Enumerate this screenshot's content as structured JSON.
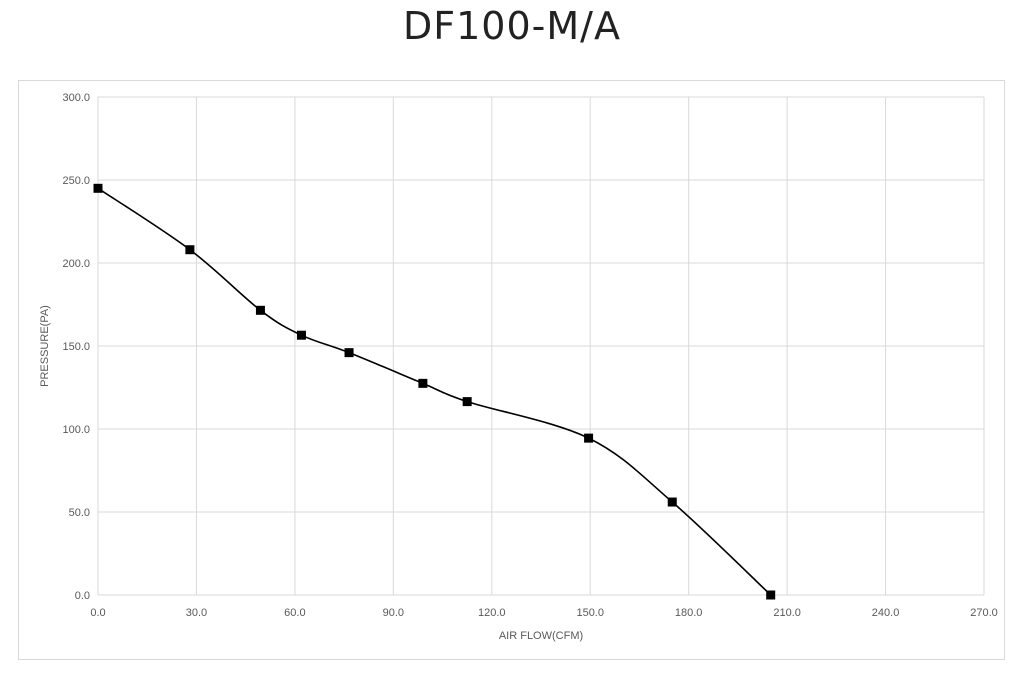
{
  "title": "DF100-M/A",
  "chart_data": {
    "type": "line",
    "title": "DF100-M/A",
    "xlabel": "AIR FLOW(CFM)",
    "ylabel": "PRESSURE(PA)",
    "xlim": [
      0,
      270
    ],
    "ylim": [
      0,
      300
    ],
    "x_ticks": [
      "0.0",
      "30.0",
      "60.0",
      "90.0",
      "120.0",
      "150.0",
      "180.0",
      "210.0",
      "240.0",
      "270.0"
    ],
    "y_ticks": [
      "0.0",
      "50.0",
      "100.0",
      "150.0",
      "200.0",
      "250.0",
      "300.0"
    ],
    "grid": true,
    "marker": "square",
    "smooth": true,
    "line_color": "#000000",
    "grid_color": "#d9d9d9",
    "series": [
      {
        "x": [
          0,
          28,
          49.5,
          62,
          76.5,
          99,
          112.5,
          149.5,
          175,
          205
        ],
        "y": [
          245,
          208,
          171.5,
          156.5,
          146,
          127.5,
          116.5,
          94.5,
          56,
          0
        ]
      }
    ]
  }
}
